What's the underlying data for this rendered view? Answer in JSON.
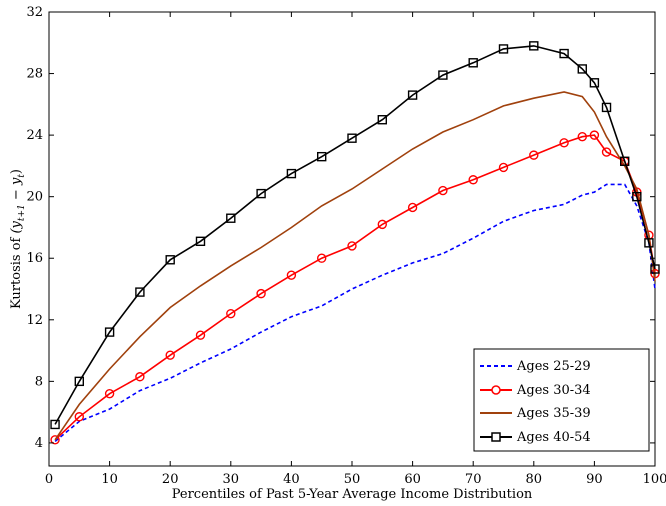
{
  "chart_data": {
    "type": "line",
    "title": "",
    "xlabel": "Percentiles of Past 5-Year Average Income Distribution",
    "ylabel_prefix": "Kurtosis of ",
    "ylabel_math": "(y",
    "ylabel_sub1": "t+1",
    "ylabel_mid": " − y",
    "ylabel_sub2": "t",
    "ylabel_suffix": ")",
    "xlim": [
      0,
      100
    ],
    "ylim": [
      2.5,
      32
    ],
    "x_ticks": [
      0,
      10,
      20,
      30,
      40,
      50,
      60,
      70,
      80,
      90,
      100
    ],
    "y_ticks": [
      4,
      8,
      12,
      16,
      20,
      24,
      28,
      32
    ],
    "grid": false,
    "legend_position": "bottom-right",
    "x": [
      1,
      5,
      10,
      15,
      20,
      25,
      30,
      35,
      40,
      45,
      50,
      55,
      60,
      65,
      70,
      75,
      80,
      85,
      88,
      90,
      92,
      95,
      97,
      99,
      100
    ],
    "series": [
      {
        "name": "Ages 25-29",
        "color": "#0000ff",
        "style": "dashed",
        "marker": "none",
        "values": [
          4.1,
          5.4,
          6.2,
          7.4,
          8.2,
          9.2,
          10.1,
          11.2,
          12.2,
          12.9,
          14.0,
          14.9,
          15.7,
          16.3,
          17.3,
          18.4,
          19.1,
          19.5,
          20.1,
          20.3,
          20.8,
          20.8,
          19.4,
          17.0,
          14.0
        ]
      },
      {
        "name": "Ages 30-34",
        "color": "#ff0000",
        "style": "solid",
        "marker": "circle",
        "values": [
          4.2,
          5.7,
          7.2,
          8.3,
          9.7,
          11.0,
          12.4,
          13.7,
          14.9,
          16.0,
          16.8,
          18.2,
          19.3,
          20.4,
          21.1,
          21.9,
          22.7,
          23.5,
          23.9,
          24.0,
          22.9,
          22.3,
          20.3,
          17.5,
          15.0
        ]
      },
      {
        "name": "Ages 35-39",
        "color": "#a0410d",
        "style": "solid",
        "marker": "none",
        "values": [
          4.2,
          6.5,
          8.8,
          10.9,
          12.8,
          14.2,
          15.5,
          16.7,
          18.0,
          19.4,
          20.5,
          21.8,
          23.1,
          24.2,
          25.0,
          25.9,
          26.4,
          26.8,
          26.5,
          25.5,
          23.9,
          22.0,
          20.5,
          17.5,
          14.5
        ]
      },
      {
        "name": "Ages 40-54",
        "color": "#000000",
        "style": "solid",
        "marker": "square",
        "values": [
          5.2,
          8.0,
          11.2,
          13.8,
          15.9,
          17.1,
          18.6,
          20.2,
          21.5,
          22.6,
          23.8,
          25.0,
          26.6,
          27.9,
          28.7,
          29.6,
          29.8,
          29.3,
          28.3,
          27.4,
          25.8,
          22.3,
          20.0,
          17.0,
          15.3
        ]
      }
    ]
  }
}
